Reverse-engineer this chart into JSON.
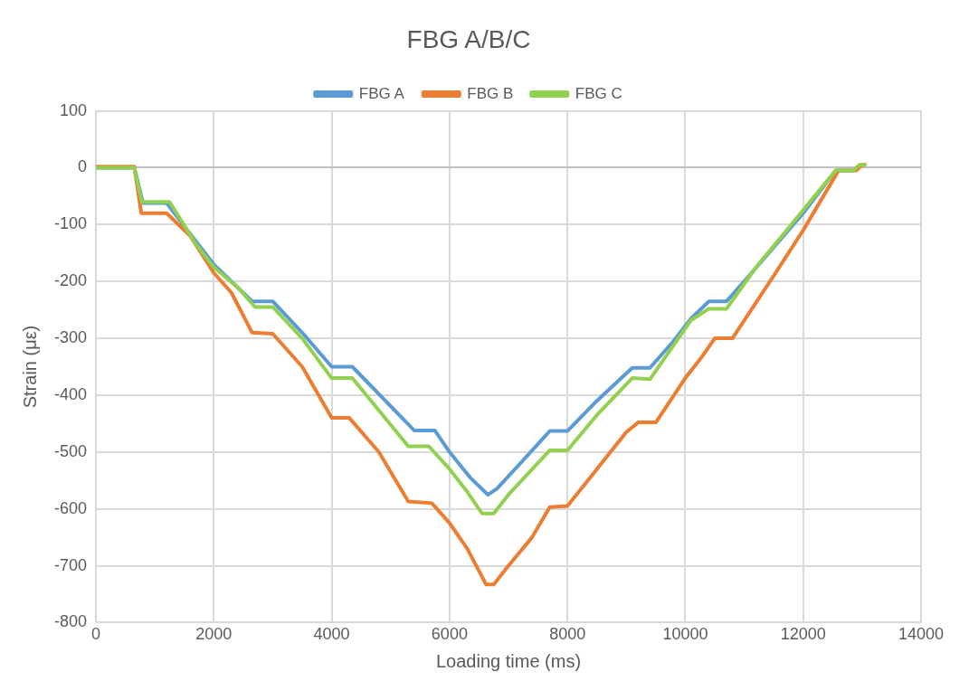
{
  "chart_data": {
    "type": "line",
    "title": "FBG A/B/C",
    "xlabel": "Loading time (ms)",
    "ylabel": "Strain (με)",
    "xlim": [
      0,
      14000
    ],
    "xticks": [
      0,
      2000,
      4000,
      6000,
      8000,
      10000,
      12000,
      14000
    ],
    "ylim": [
      -800,
      100
    ],
    "yticks": [
      -800,
      -700,
      -600,
      -500,
      -400,
      -300,
      -200,
      -100,
      0,
      100
    ],
    "grid": true,
    "legend": "top",
    "marker": "none",
    "line_style": "solid",
    "series": [
      {
        "name": "FBG A",
        "color": "#5b9bd5",
        "x": [
          0,
          650,
          800,
          1200,
          1700,
          2000,
          2200,
          2650,
          3000,
          3500,
          4000,
          4350,
          5400,
          5750,
          6000,
          6350,
          6650,
          6800,
          7200,
          7700,
          8000,
          8500,
          9100,
          9400,
          9800,
          10100,
          10400,
          10700,
          11000,
          11500,
          12000,
          12550,
          12850
        ],
        "values": [
          0,
          0,
          -62,
          -62,
          -130,
          -170,
          -190,
          -235,
          -235,
          -290,
          -350,
          -350,
          -462,
          -462,
          -500,
          -545,
          -575,
          -565,
          -520,
          -463,
          -463,
          -410,
          -352,
          -352,
          -305,
          -265,
          -235,
          -235,
          -200,
          -140,
          -80,
          -5,
          -5
        ]
      },
      {
        "name": "FBG B",
        "color": "#ed7d31",
        "x": [
          0,
          650,
          770,
          1200,
          1600,
          2000,
          2300,
          2650,
          3000,
          3500,
          4000,
          4300,
          4800,
          5300,
          5700,
          6000,
          6300,
          6620,
          6750,
          7000,
          7400,
          7700,
          8000,
          8500,
          9000,
          9200,
          9500,
          10000,
          10300,
          10500,
          10800,
          11500,
          12000,
          12600,
          12900,
          13000,
          13050
        ],
        "values": [
          2,
          2,
          -80,
          -80,
          -120,
          -185,
          -220,
          -290,
          -292,
          -350,
          -440,
          -440,
          -500,
          -587,
          -590,
          -625,
          -670,
          -733,
          -733,
          -700,
          -650,
          -597,
          -595,
          -530,
          -465,
          -448,
          -448,
          -370,
          -330,
          -300,
          -300,
          -190,
          -110,
          -5,
          -5,
          5,
          5
        ]
      },
      {
        "name": "FBG C",
        "color": "#92d050",
        "x": [
          0,
          650,
          780,
          1250,
          1700,
          2000,
          2400,
          2700,
          3000,
          3500,
          4000,
          4350,
          5300,
          5650,
          6000,
          6300,
          6550,
          6750,
          7000,
          7700,
          8000,
          8500,
          9100,
          9400,
          10100,
          10400,
          10700,
          11200,
          11800,
          12550,
          12850,
          12950,
          13050
        ],
        "values": [
          0,
          0,
          -60,
          -60,
          -135,
          -175,
          -210,
          -245,
          -245,
          -300,
          -370,
          -370,
          -490,
          -490,
          -530,
          -570,
          -608,
          -608,
          -575,
          -497,
          -497,
          -435,
          -370,
          -372,
          -268,
          -248,
          -248,
          -175,
          -100,
          -5,
          -5,
          5,
          5
        ]
      }
    ]
  }
}
